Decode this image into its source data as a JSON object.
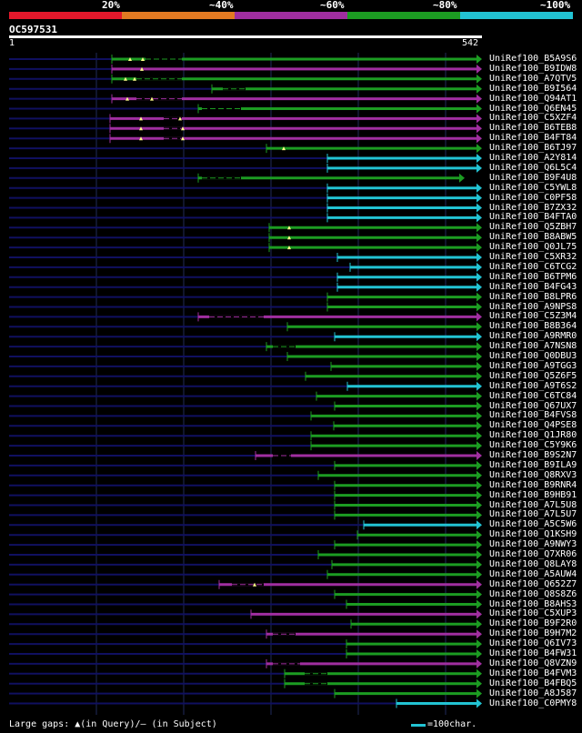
{
  "legend": {
    "labels": [
      "20%",
      "~40%",
      "~60%",
      "~80%",
      "~100%"
    ],
    "colors": [
      "#e5182b",
      "#e37a22",
      "#a02ea0",
      "#1c9c22",
      "#22c3d3"
    ]
  },
  "query": {
    "id": "OC597531",
    "start": "1",
    "end": "542"
  },
  "colors": {
    "background": "#000000",
    "ruler": "#ffffff",
    "grid": "#202a5a",
    "unaligned": "#101060",
    "magenta": "#a02ea0",
    "green": "#1c9c22",
    "cyan": "#22c3d3",
    "gap_marker": "#ffff88"
  },
  "hits": [
    {
      "label": "UniRef100_B5A9S6",
      "color": "green",
      "start": 123,
      "gaps": [
        [
          160,
          200
        ]
      ],
      "marks": [
        143,
        157
      ]
    },
    {
      "label": "UniRef100_B9IDW8",
      "color": "magenta",
      "start": 123,
      "gaps": [],
      "marks": [
        156
      ]
    },
    {
      "label": "UniRef100_A7QTV5",
      "color": "green",
      "start": 123,
      "gaps": [
        [
          150,
          200
        ]
      ],
      "marks": [
        138,
        148
      ]
    },
    {
      "label": "UniRef100_B9I564",
      "color": "green",
      "start": 233,
      "gaps": [
        [
          245,
          270
        ]
      ],
      "marks": []
    },
    {
      "label": "UniRef100_Q94AT1",
      "color": "magenta",
      "start": 123,
      "gaps": [
        [
          150,
          200
        ]
      ],
      "marks": [
        140,
        167
      ]
    },
    {
      "label": "UniRef100_Q6EN45",
      "color": "green",
      "start": 218,
      "gaps": [
        [
          222,
          265
        ]
      ],
      "marks": []
    },
    {
      "label": "UniRef100_C5XZF4",
      "color": "magenta",
      "start": 121,
      "gaps": [
        [
          180,
          200
        ]
      ],
      "marks": [
        155,
        198
      ]
    },
    {
      "label": "UniRef100_B6TEB8",
      "color": "magenta",
      "start": 121,
      "gaps": [
        [
          180,
          200
        ]
      ],
      "marks": [
        155,
        201
      ]
    },
    {
      "label": "UniRef100_B4FT84",
      "color": "magenta",
      "start": 121,
      "gaps": [
        [
          180,
          200
        ]
      ],
      "marks": [
        155,
        201
      ]
    },
    {
      "label": "UniRef100_B6TJ97",
      "color": "green",
      "start": 293,
      "gaps": [],
      "marks": [
        312
      ]
    },
    {
      "label": "UniRef100_A2Y814",
      "color": "cyan",
      "start": 360,
      "gaps": [],
      "marks": []
    },
    {
      "label": "UniRef100_Q6L5C4",
      "color": "cyan",
      "start": 360,
      "gaps": [],
      "marks": []
    },
    {
      "label": "UniRef100_B9F4U8",
      "color": "green",
      "start": 218,
      "gaps": [
        [
          222,
          265
        ]
      ],
      "marks": [],
      "end": 505
    },
    {
      "label": "UniRef100_C5YWL8",
      "color": "cyan",
      "start": 360,
      "gaps": [],
      "marks": []
    },
    {
      "label": "UniRef100_C0PF58",
      "color": "cyan",
      "start": 360,
      "gaps": [],
      "marks": []
    },
    {
      "label": "UniRef100_B7ZX32",
      "color": "cyan",
      "start": 360,
      "gaps": [],
      "marks": []
    },
    {
      "label": "UniRef100_B4FTA0",
      "color": "cyan",
      "start": 360,
      "gaps": [],
      "marks": []
    },
    {
      "label": "UniRef100_Q5ZBH7",
      "color": "green",
      "start": 296,
      "gaps": [],
      "marks": [
        318
      ]
    },
    {
      "label": "UniRef100_B8ABW5",
      "color": "green",
      "start": 296,
      "gaps": [],
      "marks": [
        318
      ]
    },
    {
      "label": "UniRef100_Q0JL75",
      "color": "green",
      "start": 296,
      "gaps": [],
      "marks": [
        318
      ]
    },
    {
      "label": "UniRef100_C5XR32",
      "color": "cyan",
      "start": 371,
      "gaps": [],
      "marks": []
    },
    {
      "label": "UniRef100_C6TCG2",
      "color": "cyan",
      "start": 385,
      "gaps": [],
      "marks": []
    },
    {
      "label": "UniRef100_B6TPM6",
      "color": "cyan",
      "start": 371,
      "gaps": [],
      "marks": []
    },
    {
      "label": "UniRef100_B4FG43",
      "color": "cyan",
      "start": 371,
      "gaps": [],
      "marks": []
    },
    {
      "label": "UniRef100_B8LPR6",
      "color": "green",
      "start": 360,
      "gaps": [],
      "marks": []
    },
    {
      "label": "UniRef100_A9NPS8",
      "color": "green",
      "start": 360,
      "gaps": [],
      "marks": []
    },
    {
      "label": "UniRef100_C5Z3M4",
      "color": "magenta",
      "start": 218,
      "gaps": [
        [
          230,
          290
        ]
      ],
      "marks": []
    },
    {
      "label": "UniRef100_B8B364",
      "color": "green",
      "start": 316,
      "gaps": [],
      "marks": []
    },
    {
      "label": "UniRef100_A9RMR0",
      "color": "cyan",
      "start": 368,
      "gaps": [],
      "marks": []
    },
    {
      "label": "UniRef100_A7NSN8",
      "color": "green",
      "start": 293,
      "gaps": [
        [
          300,
          325
        ]
      ],
      "marks": []
    },
    {
      "label": "UniRef100_Q0DBU3",
      "color": "green",
      "start": 316,
      "gaps": [],
      "marks": []
    },
    {
      "label": "UniRef100_A9TGG3",
      "color": "green",
      "start": 364,
      "gaps": [],
      "marks": []
    },
    {
      "label": "UniRef100_Q5Z6F5",
      "color": "green",
      "start": 336,
      "gaps": [],
      "marks": []
    },
    {
      "label": "UniRef100_A9T6S2",
      "color": "cyan",
      "start": 382,
      "gaps": [],
      "marks": []
    },
    {
      "label": "UniRef100_C6TC84",
      "color": "green",
      "start": 348,
      "gaps": [],
      "marks": []
    },
    {
      "label": "UniRef100_Q67UX7",
      "color": "green",
      "start": 368,
      "gaps": [],
      "marks": []
    },
    {
      "label": "UniRef100_B4FVS8",
      "color": "green",
      "start": 342,
      "gaps": [],
      "marks": []
    },
    {
      "label": "UniRef100_Q4PSE8",
      "color": "green",
      "start": 367,
      "gaps": [],
      "marks": []
    },
    {
      "label": "UniRef100_Q1JR80",
      "color": "green",
      "start": 342,
      "gaps": [],
      "marks": []
    },
    {
      "label": "UniRef100_C5Y9K6",
      "color": "green",
      "start": 342,
      "gaps": [],
      "marks": []
    },
    {
      "label": "UniRef100_B9S2N7",
      "color": "magenta",
      "start": 281,
      "gaps": [
        [
          300,
          320
        ]
      ],
      "marks": []
    },
    {
      "label": "UniRef100_B9ILA9",
      "color": "green",
      "start": 368,
      "gaps": [],
      "marks": []
    },
    {
      "label": "UniRef100_Q8RXV3",
      "color": "green",
      "start": 350,
      "gaps": [],
      "marks": []
    },
    {
      "label": "UniRef100_B9RNR4",
      "color": "green",
      "start": 368,
      "gaps": [],
      "marks": []
    },
    {
      "label": "UniRef100_B9HB91",
      "color": "green",
      "start": 368,
      "gaps": [],
      "marks": []
    },
    {
      "label": "UniRef100_A7L5U8",
      "color": "green",
      "start": 368,
      "gaps": [],
      "marks": []
    },
    {
      "label": "UniRef100_A7L5U7",
      "color": "green",
      "start": 368,
      "gaps": [],
      "marks": []
    },
    {
      "label": "UniRef100_A5C5W6",
      "color": "cyan",
      "start": 400,
      "gaps": [],
      "marks": []
    },
    {
      "label": "UniRef100_Q1KSH9",
      "color": "green",
      "start": 393,
      "gaps": [],
      "marks": []
    },
    {
      "label": "UniRef100_A9NWY3",
      "color": "green",
      "start": 368,
      "gaps": [],
      "marks": []
    },
    {
      "label": "UniRef100_Q7XR06",
      "color": "green",
      "start": 350,
      "gaps": [],
      "marks": []
    },
    {
      "label": "UniRef100_Q8LAY8",
      "color": "green",
      "start": 365,
      "gaps": [],
      "marks": []
    },
    {
      "label": "UniRef100_A5AUW4",
      "color": "green",
      "start": 360,
      "gaps": [],
      "marks": []
    },
    {
      "label": "UniRef100_Q652Z7",
      "color": "magenta",
      "start": 241,
      "gaps": [
        [
          255,
          290
        ]
      ],
      "marks": [
        280
      ]
    },
    {
      "label": "UniRef100_Q8S8Z6",
      "color": "green",
      "start": 368,
      "gaps": [],
      "marks": []
    },
    {
      "label": "UniRef100_B8AHS3",
      "color": "green",
      "start": 381,
      "gaps": [],
      "marks": []
    },
    {
      "label": "UniRef100_C5XUP3",
      "color": "magenta",
      "start": 276,
      "gaps": [],
      "marks": []
    },
    {
      "label": "UniRef100_B9F2R0",
      "color": "green",
      "start": 386,
      "gaps": [],
      "marks": []
    },
    {
      "label": "UniRef100_B9H7M2",
      "color": "magenta",
      "start": 293,
      "gaps": [
        [
          300,
          325
        ]
      ],
      "marks": []
    },
    {
      "label": "UniRef100_Q6IV73",
      "color": "green",
      "start": 381,
      "gaps": [],
      "marks": []
    },
    {
      "label": "UniRef100_B4FW31",
      "color": "green",
      "start": 381,
      "gaps": [],
      "marks": []
    },
    {
      "label": "UniRef100_Q8VZN9",
      "color": "magenta",
      "start": 293,
      "gaps": [
        [
          300,
          330
        ]
      ],
      "marks": []
    },
    {
      "label": "UniRef100_B4FVM3",
      "color": "green",
      "start": 313,
      "gaps": [
        [
          335,
          360
        ]
      ],
      "marks": []
    },
    {
      "label": "UniRef100_B4FBQ5",
      "color": "green",
      "start": 313,
      "gaps": [
        [
          335,
          360
        ]
      ],
      "marks": []
    },
    {
      "label": "UniRef100_A8J587",
      "color": "green",
      "start": 368,
      "gaps": [],
      "marks": []
    },
    {
      "label": "UniRef100_C0PMY8",
      "color": "cyan",
      "start": 436,
      "gaps": [],
      "marks": []
    }
  ],
  "footer": {
    "legend_text": "Large gaps: ▲(in Query)/— (in Subject)",
    "scale_text": "=100char."
  }
}
